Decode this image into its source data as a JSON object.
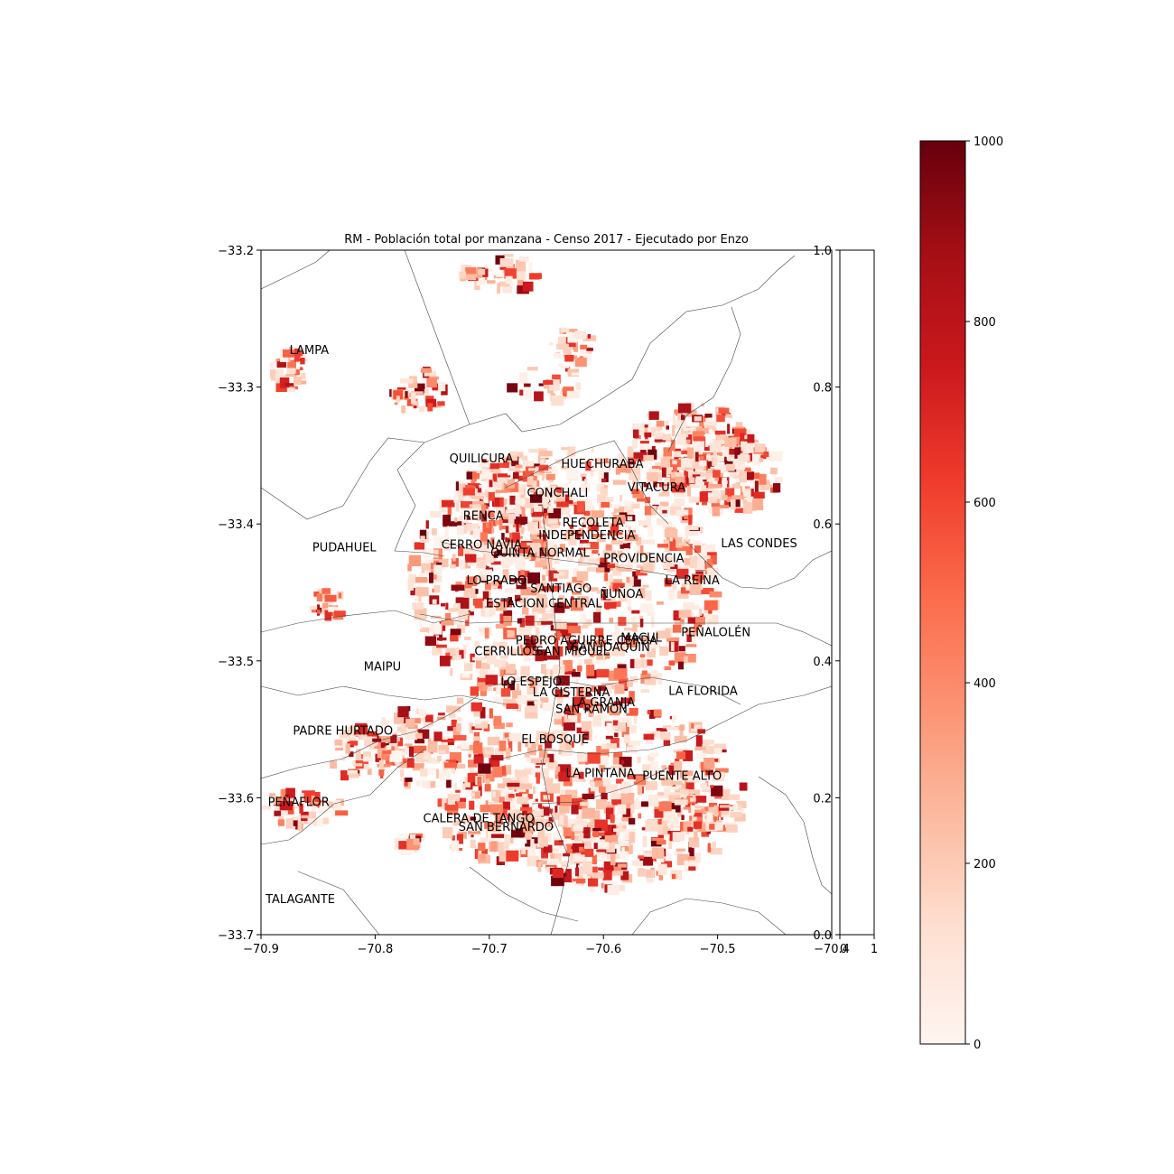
{
  "title": "RM - Población total por manzana - Censo 2017 - Ejecutado por Enzo",
  "map": {
    "x_ticks": [
      "−70.9",
      "−70.8",
      "−70.7",
      "−70.6",
      "−70.5",
      "−70.4"
    ],
    "y_ticks": [
      "−33.2",
      "−33.3",
      "−33.4",
      "−33.5",
      "−33.6",
      "−33.7"
    ],
    "xlim": [
      -70.9,
      -70.4
    ],
    "ylim": [
      -33.7,
      -33.2
    ],
    "communes": [
      {
        "name": "LAMPA",
        "lon": -70.875,
        "lat": -33.276
      },
      {
        "name": "QUILICURA",
        "lon": -70.735,
        "lat": -33.355
      },
      {
        "name": "HUECHURABA",
        "lon": -70.637,
        "lat": -33.359
      },
      {
        "name": "CONCHALI",
        "lon": -70.667,
        "lat": -33.38
      },
      {
        "name": "VITACURA",
        "lon": -70.579,
        "lat": -33.376
      },
      {
        "name": "RENCA",
        "lon": -70.723,
        "lat": -33.397
      },
      {
        "name": "RECOLETA",
        "lon": -70.636,
        "lat": -33.402
      },
      {
        "name": "INDEPENDENCIA",
        "lon": -70.657,
        "lat": -33.411
      },
      {
        "name": "PUDAHUEL",
        "lon": -70.855,
        "lat": -33.42
      },
      {
        "name": "CERRO NAVIA",
        "lon": -70.742,
        "lat": -33.418
      },
      {
        "name": "LAS CONDES",
        "lon": -70.497,
        "lat": -33.417
      },
      {
        "name": "QUINTA NORMAL",
        "lon": -70.699,
        "lat": -33.424
      },
      {
        "name": "PROVIDENCIA",
        "lon": -70.6,
        "lat": -33.428
      },
      {
        "name": "LO PRADO",
        "lon": -70.72,
        "lat": -33.444
      },
      {
        "name": "LA REINA",
        "lon": -70.546,
        "lat": -33.444
      },
      {
        "name": "SANTIAGO",
        "lon": -70.664,
        "lat": -33.45
      },
      {
        "name": "ÑUÑOA",
        "lon": -70.603,
        "lat": -33.454
      },
      {
        "name": "ESTACION CENTRAL",
        "lon": -70.703,
        "lat": -33.461
      },
      {
        "name": "PEÑALOLÉN",
        "lon": -70.532,
        "lat": -33.482
      },
      {
        "name": "PEDRO AGUIRRE CERDA",
        "lon": -70.677,
        "lat": -33.488
      },
      {
        "name": "MACUL",
        "lon": -70.585,
        "lat": -33.486
      },
      {
        "name": "SAN JOAQUIN",
        "lon": -70.628,
        "lat": -33.493
      },
      {
        "name": "CERRILLOS",
        "lon": -70.713,
        "lat": -33.496
      },
      {
        "name": "SAN MIGUEL",
        "lon": -70.659,
        "lat": -33.496
      },
      {
        "name": "MAIPU",
        "lon": -70.81,
        "lat": -33.507
      },
      {
        "name": "LO ESPEJO",
        "lon": -70.69,
        "lat": -33.518
      },
      {
        "name": "LA CISTERNA",
        "lon": -70.662,
        "lat": -33.526
      },
      {
        "name": "LA FLORIDA",
        "lon": -70.543,
        "lat": -33.525
      },
      {
        "name": "LA GRANJA",
        "lon": -70.628,
        "lat": -33.533
      },
      {
        "name": "SAN RAMON",
        "lon": -70.642,
        "lat": -33.538
      },
      {
        "name": "PADRE HURTADO",
        "lon": -70.872,
        "lat": -33.554
      },
      {
        "name": "EL BOSQUE",
        "lon": -70.672,
        "lat": -33.56
      },
      {
        "name": "LA PINTANA",
        "lon": -70.633,
        "lat": -33.585
      },
      {
        "name": "PUENTE ALTO",
        "lon": -70.566,
        "lat": -33.587
      },
      {
        "name": "PEÑAFLOR",
        "lon": -70.894,
        "lat": -33.606
      },
      {
        "name": "CALERA DE TANGO",
        "lon": -70.758,
        "lat": -33.618
      },
      {
        "name": "SAN BERNARDO",
        "lon": -70.727,
        "lat": -33.624
      },
      {
        "name": "TALAGANTE",
        "lon": -70.896,
        "lat": -33.677
      }
    ]
  },
  "middle_axis": {
    "y_ticks": [
      "0.0",
      "0.2",
      "0.4",
      "0.6",
      "0.8",
      "1.0"
    ],
    "x_ticks": [
      "0",
      "1"
    ]
  },
  "colorbar": {
    "cmap": "Reds",
    "vmin": 0,
    "vmax": 1000,
    "ticks": [
      "0",
      "200",
      "400",
      "600",
      "800",
      "1000"
    ],
    "stops": [
      "#fff5f0",
      "#fee0d2",
      "#fcbba1",
      "#fc9272",
      "#fb6a4a",
      "#ef3b2c",
      "#cb181d",
      "#a50f15",
      "#67000d"
    ]
  }
}
